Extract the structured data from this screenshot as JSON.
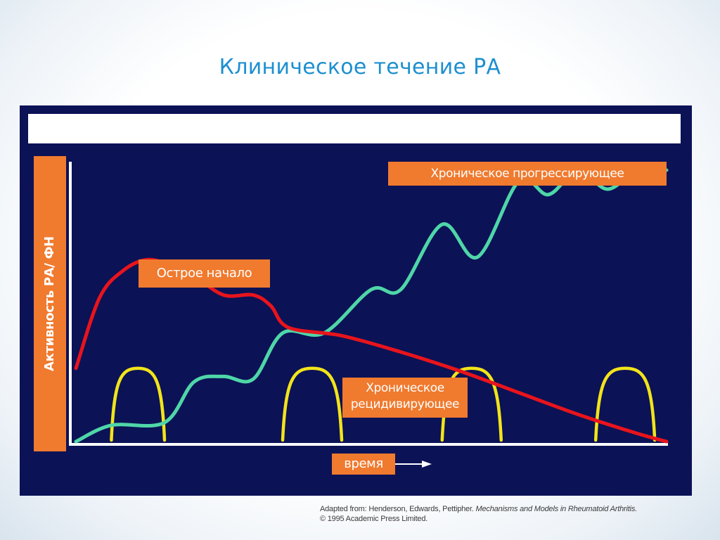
{
  "title": "Клиническое течение РА",
  "labels": {
    "ylabel": "Активность РА/ ФН",
    "xlabel": "время",
    "progressive": "Хроническое прогрессирующее",
    "acute": "Острое начало",
    "relapsing": "Хроническое\nрецидивирующее"
  },
  "caption": {
    "line1_prefix": "Adapted from: Henderson, Edwards, Pettipher. ",
    "line1_book": "Mechanisms and Models in Rheumatoid Arthritis.",
    "line2": "© 1995 Academic Press Limited."
  },
  "colors": {
    "background_panel": "#0b1256",
    "label_fill": "#f07a2e",
    "title": "#1d8fd0",
    "acute": "#e8141c",
    "progressive": "#4fd6a8",
    "relapsing": "#f2e41a",
    "axis": "#ffffff"
  },
  "chart_data": {
    "type": "line",
    "xlabel": "время",
    "ylabel": "Активность РА/ ФН",
    "xlim": [
      0,
      100
    ],
    "ylim": [
      0,
      100
    ],
    "grid": false,
    "ticks": false,
    "series": [
      {
        "name": "Острое начало",
        "color": "#e8141c",
        "points": [
          [
            0,
            27
          ],
          [
            4,
            53
          ],
          [
            8,
            63
          ],
          [
            12,
            67
          ],
          [
            16,
            65
          ],
          [
            20,
            61
          ],
          [
            25,
            54
          ],
          [
            30,
            54
          ],
          [
            33,
            50
          ],
          [
            36,
            42
          ],
          [
            45,
            39
          ],
          [
            55,
            33
          ],
          [
            65,
            26
          ],
          [
            75,
            18
          ],
          [
            85,
            10
          ],
          [
            95,
            3
          ],
          [
            100,
            0
          ]
        ]
      },
      {
        "name": "Хроническое прогрессирующее",
        "color": "#4fd6a8",
        "points": [
          [
            0,
            0
          ],
          [
            6,
            6
          ],
          [
            15,
            7
          ],
          [
            20,
            22
          ],
          [
            25,
            24
          ],
          [
            30,
            23
          ],
          [
            35,
            40
          ],
          [
            42,
            40
          ],
          [
            50,
            56
          ],
          [
            55,
            56
          ],
          [
            62,
            80
          ],
          [
            68,
            68
          ],
          [
            75,
            96
          ],
          [
            80,
            91
          ],
          [
            85,
            100
          ],
          [
            90,
            93
          ],
          [
            95,
            100
          ],
          [
            100,
            100
          ]
        ]
      },
      {
        "name": "Хроническое рецидивирующее",
        "color": "#f2e41a",
        "humps": [
          [
            6,
            15,
            27
          ],
          [
            35,
            45,
            27
          ],
          [
            62,
            72,
            27
          ],
          [
            88,
            98,
            27
          ]
        ]
      }
    ]
  }
}
